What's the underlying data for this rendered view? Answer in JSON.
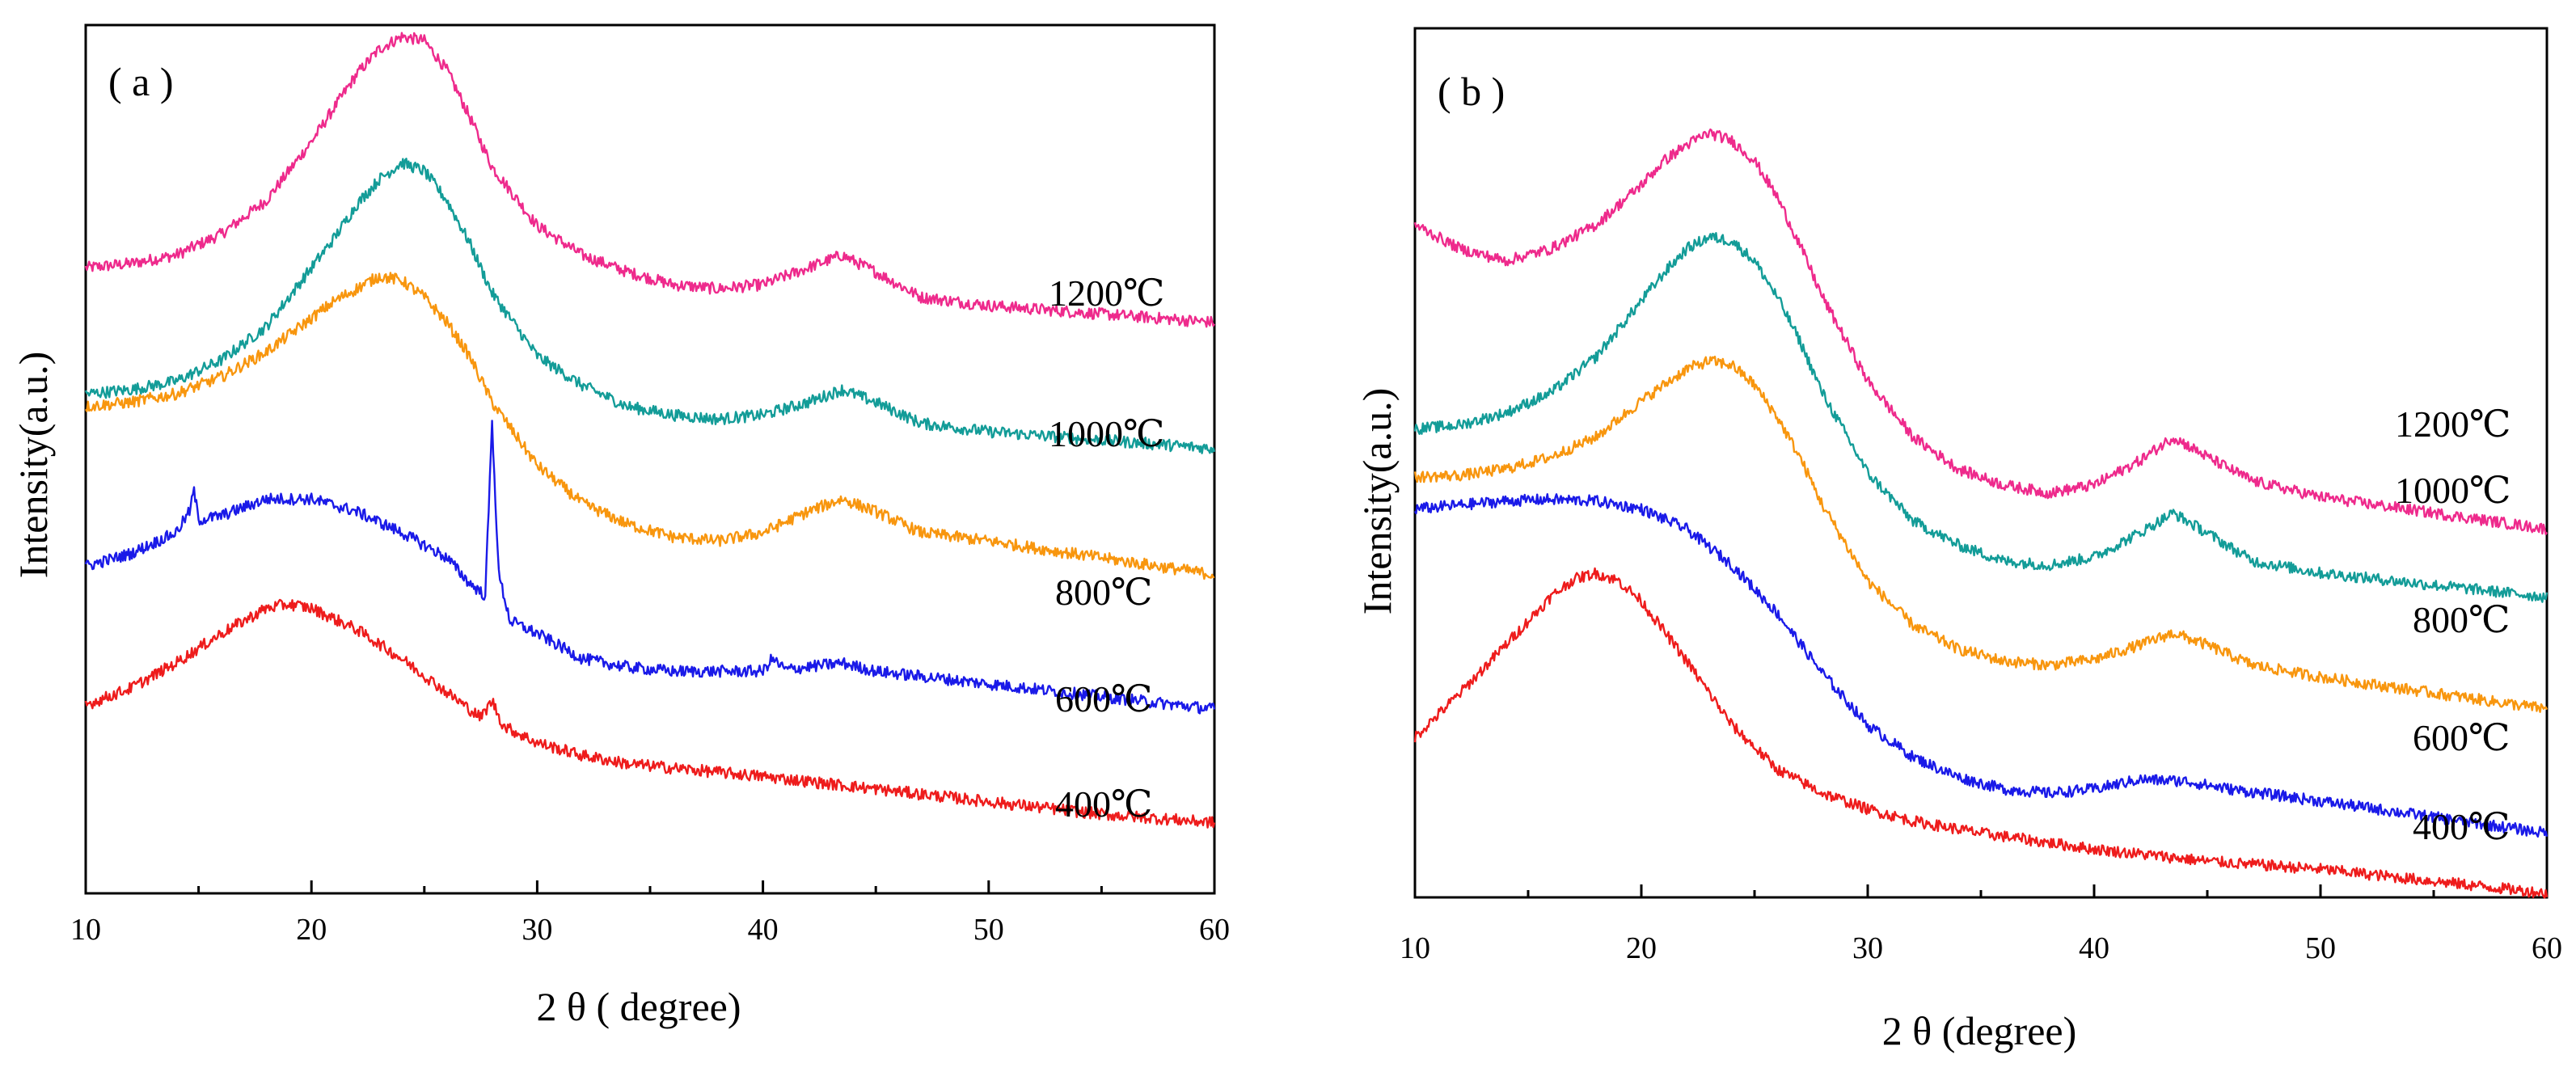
{
  "chart_data": [
    {
      "type": "line",
      "panel_label": "( a )",
      "xlabel": "2 θ  ( degree)",
      "ylabel": "Intensity(a.u.)",
      "xlim": [
        10,
        60
      ],
      "ylim": [
        0,
        10
      ],
      "x_ticks": [
        10,
        20,
        30,
        40,
        50,
        60
      ],
      "x_tick_labels": [
        "10",
        "20",
        "30",
        "40",
        "50",
        "60"
      ],
      "y_ticks": [],
      "grid": false,
      "legend": "inline labels at right of each curve",
      "series": [
        {
          "name": "1200℃",
          "color": "#ee2a8c",
          "x": [
            10,
            12,
            14,
            16,
            18,
            20,
            21,
            22,
            23,
            24,
            25,
            26,
            27,
            28,
            30,
            32,
            34,
            36,
            38,
            40,
            42,
            43.5,
            45,
            47,
            50,
            55,
            60
          ],
          "y": [
            7.2,
            7.25,
            7.35,
            7.6,
            8.0,
            8.7,
            9.1,
            9.5,
            9.8,
            9.95,
            9.9,
            9.55,
            9.0,
            8.4,
            7.7,
            7.35,
            7.15,
            7.0,
            6.95,
            7.0,
            7.2,
            7.35,
            7.15,
            6.85,
            6.75,
            6.65,
            6.55
          ]
        },
        {
          "name": "1000℃",
          "color": "#139c98",
          "x": [
            10,
            12,
            14,
            16,
            18,
            20,
            21,
            22,
            23,
            24,
            25,
            26,
            27,
            28,
            30,
            32,
            34,
            36,
            38,
            40,
            42,
            43.5,
            45,
            47,
            50,
            55,
            60
          ],
          "y": [
            5.7,
            5.75,
            5.85,
            6.1,
            6.5,
            7.2,
            7.55,
            7.95,
            8.25,
            8.45,
            8.35,
            8.0,
            7.5,
            6.9,
            6.15,
            5.8,
            5.55,
            5.45,
            5.4,
            5.45,
            5.6,
            5.75,
            5.6,
            5.35,
            5.25,
            5.15,
            5.05
          ]
        },
        {
          "name": "800℃",
          "color": "#f8960e",
          "x": [
            10,
            12,
            14,
            16,
            18,
            20,
            21,
            22,
            23,
            24,
            25,
            26,
            27,
            28,
            30,
            32,
            34,
            36,
            38,
            40,
            42,
            43.5,
            45,
            47,
            50,
            55,
            60
          ],
          "y": [
            5.55,
            5.6,
            5.7,
            5.9,
            6.2,
            6.6,
            6.8,
            6.95,
            7.1,
            7.05,
            6.85,
            6.55,
            6.15,
            5.6,
            4.85,
            4.4,
            4.15,
            4.0,
            3.95,
            4.05,
            4.3,
            4.45,
            4.3,
            4.05,
            3.95,
            3.75,
            3.55
          ]
        },
        {
          "name": "600℃",
          "color": "#1a1ae8",
          "x": [
            10,
            12,
            14,
            14.6,
            14.8,
            15.0,
            16,
            18,
            20,
            22,
            24,
            26,
            27,
            27.7,
            28.0,
            28.3,
            28.8,
            30,
            32,
            34,
            36,
            38,
            40,
            40.4,
            41,
            43.5,
            45,
            50,
            55,
            60
          ],
          "y": [
            3.65,
            3.8,
            4.05,
            4.3,
            4.55,
            4.2,
            4.25,
            4.45,
            4.45,
            4.3,
            4.05,
            3.75,
            3.45,
            3.3,
            5.35,
            3.55,
            3.0,
            2.85,
            2.55,
            2.45,
            2.4,
            2.4,
            2.4,
            2.55,
            2.42,
            2.5,
            2.4,
            2.25,
            2.1,
            1.95
          ]
        },
        {
          "name": "400℃",
          "color": "#ee1c1c",
          "x": [
            10,
            12,
            14,
            16,
            18,
            19,
            20,
            22,
            24,
            26,
            27.5,
            28.0,
            28.5,
            30,
            32,
            34,
            36,
            40,
            45,
            50,
            55,
            60
          ],
          "y": [
            2.0,
            2.2,
            2.5,
            2.85,
            3.15,
            3.2,
            3.15,
            2.9,
            2.55,
            2.15,
            1.85,
            2.05,
            1.75,
            1.55,
            1.4,
            1.3,
            1.25,
            1.15,
            1.0,
            0.85,
            0.7,
            0.6
          ]
        }
      ],
      "series_labels": [
        "1200℃",
        "1000℃",
        "800℃",
        "600℃",
        "400℃"
      ]
    },
    {
      "type": "line",
      "panel_label": "( b )",
      "xlabel": "2 θ  (degree)",
      "ylabel": "Intensity(a.u.)",
      "xlim": [
        10,
        60
      ],
      "ylim": [
        0,
        10
      ],
      "x_ticks": [
        10,
        20,
        30,
        40,
        50,
        60
      ],
      "x_tick_labels": [
        "10",
        "20",
        "30",
        "40",
        "50",
        "60"
      ],
      "y_ticks": [],
      "grid": false,
      "legend": "inline labels at right of each curve",
      "series": [
        {
          "name": "1200℃",
          "color": "#ee2a8c",
          "x": [
            10,
            12,
            14,
            16,
            18,
            20,
            21,
            22,
            23,
            24,
            25,
            26,
            27,
            28,
            30,
            32,
            34,
            36,
            38,
            40,
            42,
            43.5,
            45,
            47,
            50,
            55,
            60
          ],
          "y": [
            8.15,
            7.85,
            7.7,
            7.85,
            8.15,
            8.65,
            8.95,
            9.15,
            9.3,
            9.2,
            8.95,
            8.5,
            7.9,
            7.25,
            6.2,
            5.5,
            5.1,
            4.9,
            4.8,
            4.9,
            5.2,
            5.5,
            5.25,
            4.95,
            4.75,
            4.55,
            4.35
          ]
        },
        {
          "name": "1000℃",
          "color": "#139c98",
          "x": [
            10,
            12,
            14,
            16,
            18,
            20,
            21,
            22,
            23,
            24,
            25,
            26,
            27,
            28,
            30,
            32,
            34,
            36,
            38,
            40,
            42,
            43.5,
            45,
            47,
            50,
            55,
            60
          ],
          "y": [
            5.6,
            5.65,
            5.8,
            6.05,
            6.5,
            7.2,
            7.55,
            7.85,
            8.0,
            7.95,
            7.7,
            7.25,
            6.7,
            6.05,
            5.05,
            4.45,
            4.15,
            3.95,
            3.9,
            4.0,
            4.3,
            4.55,
            4.3,
            3.95,
            3.8,
            3.65,
            3.5
          ]
        },
        {
          "name": "800℃",
          "color": "#f8960e",
          "x": [
            10,
            12,
            14,
            16,
            18,
            20,
            21,
            22,
            23,
            24,
            25,
            26,
            27,
            28,
            30,
            32,
            34,
            36,
            38,
            40,
            42,
            43.5,
            45,
            47,
            50,
            55,
            60
          ],
          "y": [
            5.0,
            5.02,
            5.1,
            5.25,
            5.5,
            5.95,
            6.15,
            6.35,
            6.45,
            6.4,
            6.15,
            5.75,
            5.25,
            4.65,
            3.7,
            3.15,
            2.85,
            2.7,
            2.65,
            2.72,
            2.9,
            3.05,
            2.9,
            2.65,
            2.5,
            2.3,
            2.1
          ]
        },
        {
          "name": "600℃",
          "color": "#1a1ae8",
          "x": [
            10,
            12,
            14,
            16,
            18,
            20,
            22,
            24,
            26,
            28,
            30,
            32,
            34,
            36,
            38,
            40,
            42,
            44,
            46,
            50,
            55,
            60
          ],
          "y": [
            4.6,
            4.65,
            4.7,
            4.72,
            4.7,
            4.6,
            4.35,
            3.9,
            3.3,
            2.55,
            1.9,
            1.5,
            1.25,
            1.1,
            1.05,
            1.1,
            1.22,
            1.2,
            1.1,
            0.95,
            0.75,
            0.55
          ]
        },
        {
          "name": "400℃",
          "color": "#ee1c1c",
          "x": [
            10,
            12,
            14,
            16,
            17,
            18,
            19,
            20,
            22,
            24,
            26,
            28,
            30,
            32,
            35,
            40,
            45,
            50,
            55,
            60
          ],
          "y": [
            1.75,
            2.3,
            2.9,
            3.5,
            3.72,
            3.8,
            3.7,
            3.45,
            2.7,
            1.9,
            1.35,
            1.05,
            0.85,
            0.7,
            0.55,
            0.35,
            0.2,
            0.1,
            -0.05,
            -0.2
          ]
        }
      ],
      "series_labels": [
        "1200℃",
        "1000℃",
        "800℃",
        "600℃",
        "400℃"
      ]
    }
  ]
}
